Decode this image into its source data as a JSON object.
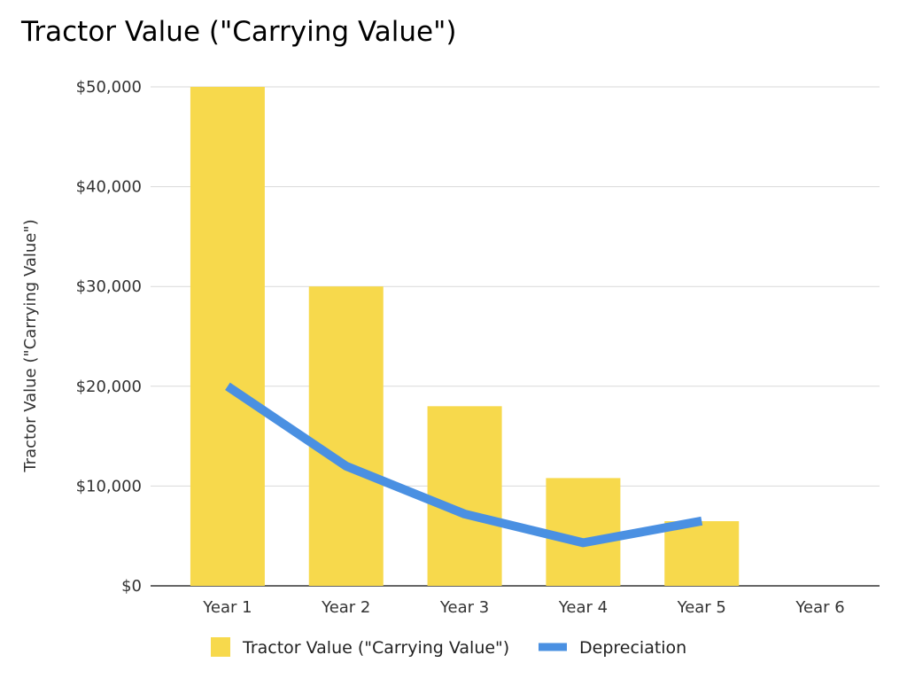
{
  "chart_data": {
    "type": "bar",
    "title": "Tractor Value (\"Carrying Value\")",
    "ylabel": "Tractor Value (\"Carrying Value\")",
    "xlabel": "",
    "categories": [
      "Year 1",
      "Year 2",
      "Year 3",
      "Year 4",
      "Year 5",
      "Year 6"
    ],
    "ylim": [
      0,
      50000
    ],
    "yticks": [
      0,
      10000,
      20000,
      30000,
      40000,
      50000
    ],
    "ytick_labels": [
      "$0",
      "$10,000",
      "$20,000",
      "$30,000",
      "$40,000",
      "$50,000"
    ],
    "grid": true,
    "legend_position": "bottom",
    "series": [
      {
        "name": "Tractor Value (\"Carrying Value\")",
        "type": "bar",
        "color": "#F7D94C",
        "values": [
          50000,
          30000,
          18000,
          10800,
          6480,
          null
        ]
      },
      {
        "name": "Depreciation",
        "type": "line",
        "color": "#4A90E2",
        "values": [
          20000,
          12000,
          7200,
          4320,
          6500,
          null
        ]
      }
    ]
  }
}
